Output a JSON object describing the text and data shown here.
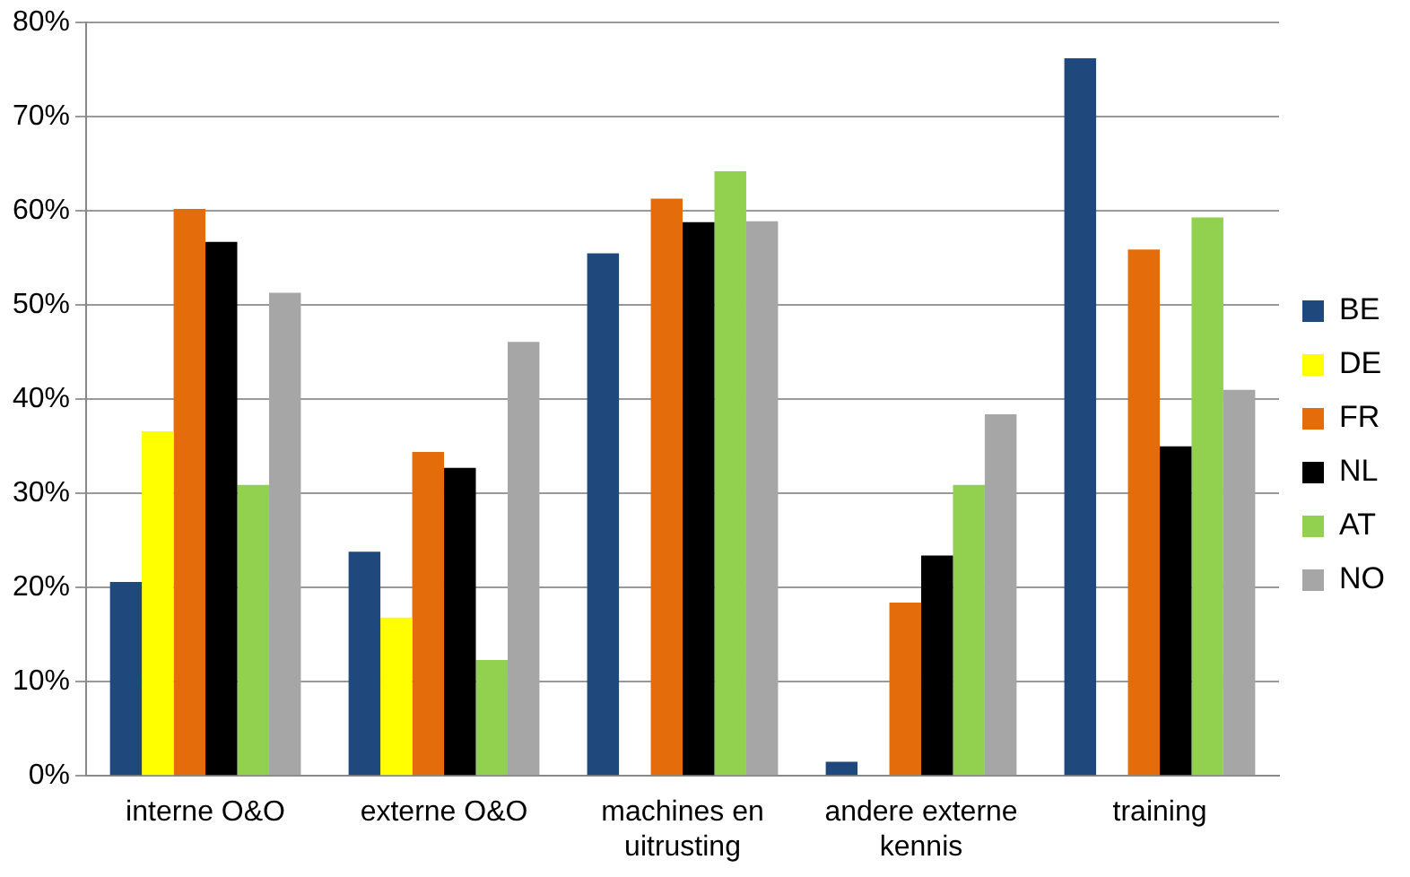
{
  "chart_data": {
    "type": "bar",
    "categories": [
      "interne O&O",
      "externe O&O",
      "machines en uitrusting",
      "andere externe kennis",
      "training"
    ],
    "series": [
      {
        "name": "BE",
        "color": "#1f497d",
        "values": [
          20.6,
          23.8,
          55.5,
          1.5,
          76.2
        ]
      },
      {
        "name": "DE",
        "color": "#ffff00",
        "values": [
          36.6,
          16.8,
          null,
          null,
          null
        ]
      },
      {
        "name": "FR",
        "color": "#e46c0a",
        "values": [
          60.2,
          34.4,
          61.3,
          18.4,
          55.9
        ]
      },
      {
        "name": "NL",
        "color": "#000000",
        "values": [
          56.7,
          32.7,
          58.8,
          23.4,
          35.0
        ]
      },
      {
        "name": "AT",
        "color": "#92d050",
        "values": [
          30.9,
          12.3,
          64.2,
          30.9,
          59.3
        ]
      },
      {
        "name": "NO",
        "color": "#a6a6a6",
        "values": [
          51.3,
          46.1,
          58.9,
          38.4,
          41.0
        ]
      }
    ],
    "ylim": [
      0,
      80
    ],
    "yticks": [
      {
        "value": 0,
        "label": "0%"
      },
      {
        "value": 10,
        "label": "10%"
      },
      {
        "value": 20,
        "label": "20%"
      },
      {
        "value": 30,
        "label": "30%"
      },
      {
        "value": 40,
        "label": "40%"
      },
      {
        "value": 50,
        "label": "50%"
      },
      {
        "value": 60,
        "label": "60%"
      },
      {
        "value": 70,
        "label": "70%"
      },
      {
        "value": 80,
        "label": "80%"
      }
    ],
    "grid": "y",
    "legend": "right"
  }
}
